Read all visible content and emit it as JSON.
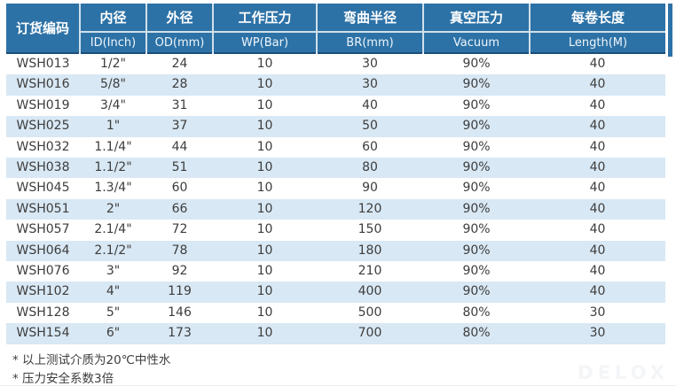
{
  "table": {
    "columns": [
      {
        "cn": "订货编码",
        "en": ""
      },
      {
        "cn": "内径",
        "en": "ID(Inch)"
      },
      {
        "cn": "外径",
        "en": "OD(mm)"
      },
      {
        "cn": "工作压力",
        "en": "WP(Bar)"
      },
      {
        "cn": "弯曲半径",
        "en": "BR(mm)"
      },
      {
        "cn": "真空压力",
        "en": "Vacuum"
      },
      {
        "cn": "每卷长度",
        "en": "Length(M)"
      }
    ],
    "rows": [
      [
        "WSH013",
        "1/2\"",
        "24",
        "10",
        "30",
        "90%",
        "40"
      ],
      [
        "WSH016",
        "5/8\"",
        "28",
        "10",
        "30",
        "90%",
        "40"
      ],
      [
        "WSH019",
        "3/4\"",
        "31",
        "10",
        "40",
        "90%",
        "40"
      ],
      [
        "WSH025",
        "1\"",
        "37",
        "10",
        "50",
        "90%",
        "40"
      ],
      [
        "WSH032",
        "1.1/4\"",
        "44",
        "10",
        "60",
        "90%",
        "40"
      ],
      [
        "WSH038",
        "1.1/2\"",
        "51",
        "10",
        "80",
        "90%",
        "40"
      ],
      [
        "WSH045",
        "1.3/4\"",
        "60",
        "10",
        "90",
        "90%",
        "40"
      ],
      [
        "WSH051",
        "2\"",
        "66",
        "10",
        "120",
        "90%",
        "40"
      ],
      [
        "WSH057",
        "2.1/4\"",
        "72",
        "10",
        "150",
        "90%",
        "40"
      ],
      [
        "WSH064",
        "2.1/2\"",
        "78",
        "10",
        "180",
        "90%",
        "40"
      ],
      [
        "WSH076",
        "3\"",
        "92",
        "10",
        "210",
        "90%",
        "40"
      ],
      [
        "WSH102",
        "4\"",
        "119",
        "10",
        "400",
        "90%",
        "40"
      ],
      [
        "WSH128",
        "5\"",
        "146",
        "10",
        "500",
        "80%",
        "30"
      ],
      [
        "WSH154",
        "6\"",
        "173",
        "10",
        "700",
        "80%",
        "30"
      ]
    ],
    "notes": [
      "* 以上测试介质为20℃中性水",
      "* 压力安全系数3倍"
    ]
  },
  "watermark": "DELOX",
  "colors": {
    "header_bg": "#2d72a6",
    "header_divider": "#ffffff",
    "header_bottom_border": "#1a4e78",
    "stripe_row": "#d8e8f4",
    "body_text": "#3d3d3d"
  }
}
